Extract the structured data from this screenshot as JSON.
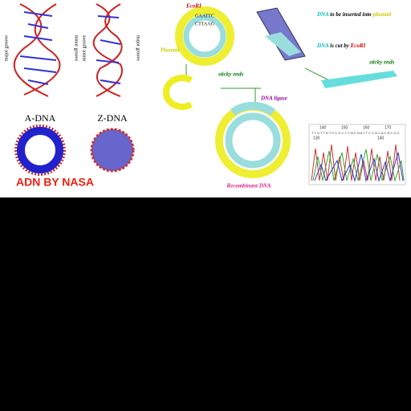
{
  "left": {
    "a_dna": {
      "major": "major groove",
      "minor": "minor groove",
      "label": "A-DNA"
    },
    "z_dna": {
      "minor": "minor groove",
      "major": "major groove",
      "label": "Z-DNA"
    },
    "credit": "ADN BY NASA"
  },
  "cloning": {
    "enzyme": "EcoRI",
    "site_top": "GAATTC",
    "site_bottom": "CTTAAG",
    "plasmid": "Plasmid",
    "sticky_left": "sticky ends",
    "insert_a": "DNA",
    "insert_b": "to be inserted into",
    "insert_c": "plasmid",
    "cut_a": "DNA",
    "cut_b": "is cut by",
    "cut_c": "EcoRI",
    "sticky_right": "sticky ends",
    "ligase": "DNA ligase",
    "result": "Recombinant DNA"
  },
  "trace": {
    "top_ticks": [
      "140",
      "150",
      "160",
      "170"
    ],
    "bottom_ticks": [
      "130",
      "140"
    ],
    "bases": "T T G T T N T C C G C T C N C N A T T C C N C A C N C G C"
  }
}
